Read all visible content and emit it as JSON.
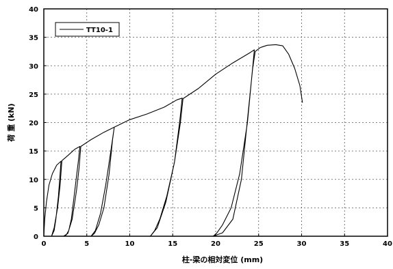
{
  "chart_data": {
    "type": "line",
    "title": "",
    "xlabel": "柱-梁の相対変位 (mm)",
    "ylabel": "荷 重 (kN)",
    "xlim": [
      0,
      40
    ],
    "ylim": [
      0,
      40
    ],
    "x_ticks": [
      "0",
      "5",
      "10",
      "15",
      "20",
      "25",
      "30",
      "35",
      "40"
    ],
    "y_ticks": [
      "0",
      "5",
      "10",
      "15",
      "20",
      "25",
      "30",
      "35",
      "40"
    ],
    "grid": true,
    "legend_position": "top-left",
    "series": [
      {
        "name": "TT10-1",
        "color": "#000000",
        "points": [
          [
            0.0,
            0.0
          ],
          [
            0.1,
            3.0
          ],
          [
            0.3,
            6.0
          ],
          [
            0.6,
            9.0
          ],
          [
            1.0,
            11.0
          ],
          [
            1.5,
            12.5
          ],
          [
            2.0,
            13.2
          ],
          [
            1.9,
            11.0
          ],
          [
            1.7,
            7.0
          ],
          [
            1.4,
            3.0
          ],
          [
            1.2,
            1.0
          ],
          [
            0.9,
            0.0
          ],
          [
            1.2,
            1.5
          ],
          [
            1.6,
            5.0
          ],
          [
            1.9,
            9.0
          ],
          [
            2.1,
            13.3
          ],
          [
            2.8,
            14.2
          ],
          [
            3.6,
            15.3
          ],
          [
            4.2,
            15.8
          ],
          [
            4.0,
            13.0
          ],
          [
            3.6,
            8.0
          ],
          [
            3.2,
            3.0
          ],
          [
            2.9,
            1.0
          ],
          [
            2.6,
            0.2
          ],
          [
            2.3,
            0.0
          ],
          [
            2.8,
            0.5
          ],
          [
            3.3,
            3.0
          ],
          [
            3.8,
            8.0
          ],
          [
            4.1,
            12.0
          ],
          [
            4.3,
            15.8
          ],
          [
            5.5,
            17.0
          ],
          [
            7.0,
            18.3
          ],
          [
            8.2,
            19.2
          ],
          [
            8.0,
            17.0
          ],
          [
            7.6,
            11.0
          ],
          [
            7.0,
            5.0
          ],
          [
            6.4,
            2.0
          ],
          [
            5.9,
            0.5
          ],
          [
            5.5,
            0.0
          ],
          [
            6.0,
            1.0
          ],
          [
            6.6,
            4.0
          ],
          [
            7.2,
            9.0
          ],
          [
            7.8,
            15.0
          ],
          [
            8.2,
            19.2
          ],
          [
            10.0,
            20.5
          ],
          [
            12.0,
            21.5
          ],
          [
            14.0,
            22.7
          ],
          [
            15.5,
            24.0
          ],
          [
            16.1,
            24.3
          ],
          [
            15.8,
            20.0
          ],
          [
            15.2,
            13.0
          ],
          [
            14.3,
            7.0
          ],
          [
            13.5,
            3.0
          ],
          [
            12.9,
            1.0
          ],
          [
            12.4,
            0.0
          ],
          [
            13.2,
            1.5
          ],
          [
            14.2,
            6.0
          ],
          [
            15.2,
            13.0
          ],
          [
            15.9,
            20.0
          ],
          [
            16.2,
            24.2
          ],
          [
            18.0,
            26.0
          ],
          [
            20.0,
            28.5
          ],
          [
            22.0,
            30.5
          ],
          [
            24.0,
            32.3
          ],
          [
            24.5,
            32.8
          ],
          [
            24.2,
            28.0
          ],
          [
            23.7,
            20.0
          ],
          [
            22.8,
            11.0
          ],
          [
            21.8,
            5.0
          ],
          [
            20.8,
            2.0
          ],
          [
            20.1,
            0.5
          ],
          [
            19.7,
            0.0
          ],
          [
            20.8,
            0.6
          ],
          [
            22.0,
            3.0
          ],
          [
            23.0,
            10.0
          ],
          [
            23.8,
            22.0
          ],
          [
            24.3,
            29.5
          ],
          [
            24.6,
            32.5
          ],
          [
            25.2,
            33.2
          ],
          [
            26.0,
            33.6
          ],
          [
            27.0,
            33.7
          ],
          [
            27.8,
            33.5
          ],
          [
            28.5,
            32.0
          ],
          [
            29.2,
            29.5
          ],
          [
            29.8,
            26.5
          ],
          [
            30.1,
            23.5
          ]
        ]
      }
    ]
  }
}
